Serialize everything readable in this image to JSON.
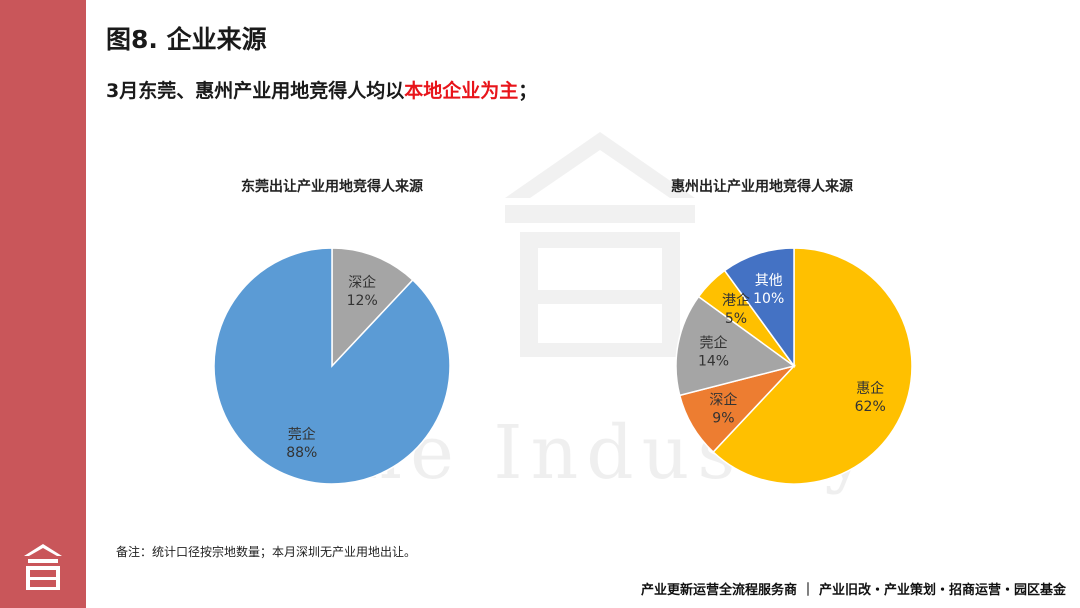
{
  "page": {
    "title": "图8. 企业来源",
    "subtitle_prefix": "3月东莞、惠州产业用地竞得人均以",
    "subtitle_highlight": "本地企业为主",
    "subtitle_suffix": "；",
    "note": "备注：统计口径按宗地数量；本月深圳无产业用地出让。",
    "footer": "产业更新运营全流程服务商 ｜ 产业旧改・产业策划・招商运营・园区基金",
    "watermark_text": "One Industry"
  },
  "colors": {
    "sidebar": "#c9565a",
    "highlight": "#e8141a"
  },
  "chart_data": [
    {
      "type": "pie",
      "title": "东莞出让产业用地竞得人来源",
      "slices": [
        {
          "label": "深企",
          "value": 12,
          "display": "12%",
          "color": "#a5a5a5"
        },
        {
          "label": "莞企",
          "value": 88,
          "display": "88%",
          "color": "#5b9bd5"
        }
      ]
    },
    {
      "type": "pie",
      "title": "惠州出让产业用地竞得人来源",
      "slices": [
        {
          "label": "惠企",
          "value": 62,
          "display": "62%",
          "color": "#ffc000"
        },
        {
          "label": "深企",
          "value": 9,
          "display": "9%",
          "color": "#ed7d31"
        },
        {
          "label": "莞企",
          "value": 14,
          "display": "14%",
          "color": "#a5a5a5"
        },
        {
          "label": "港企",
          "value": 5,
          "display": "5%",
          "color": "#ffc000"
        },
        {
          "label": "其他",
          "value": 10,
          "display": "10%",
          "color": "#4472c4"
        }
      ]
    }
  ]
}
